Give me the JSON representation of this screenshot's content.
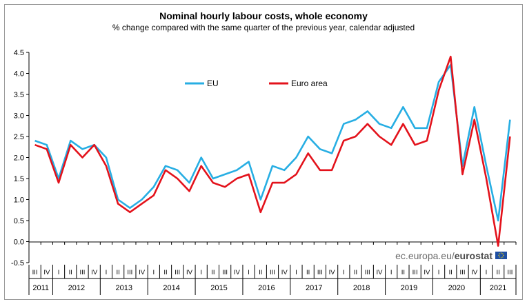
{
  "chart_data": {
    "type": "line",
    "title": "Nominal hourly labour costs, whole economy",
    "subtitle": "% change compared with the same quarter of the previous  year, calendar adjusted",
    "ylim": [
      -0.5,
      4.5
    ],
    "y_ticks": [
      "4.5",
      "4.0",
      "3.5",
      "3.0",
      "2.5",
      "2.0",
      "1.5",
      "1.0",
      "0.5",
      "0.0",
      "-0.5"
    ],
    "quarters": [
      "III",
      "IV",
      "I",
      "II",
      "III",
      "IV",
      "I",
      "II",
      "III",
      "IV",
      "I",
      "II",
      "III",
      "IV",
      "I",
      "II",
      "III",
      "IV",
      "I",
      "II",
      "III",
      "IV",
      "I",
      "II",
      "III",
      "IV",
      "I",
      "II",
      "III",
      "IV",
      "I",
      "II",
      "III",
      "IV",
      "I",
      "II",
      "III",
      "IV",
      "I",
      "II",
      "III"
    ],
    "years": [
      {
        "label": "2011",
        "start": 0,
        "end": 2
      },
      {
        "label": "2012",
        "start": 2,
        "end": 6
      },
      {
        "label": "2013",
        "start": 6,
        "end": 10
      },
      {
        "label": "2014",
        "start": 10,
        "end": 14
      },
      {
        "label": "2015",
        "start": 14,
        "end": 18
      },
      {
        "label": "2016",
        "start": 18,
        "end": 22
      },
      {
        "label": "2017",
        "start": 22,
        "end": 26
      },
      {
        "label": "2018",
        "start": 26,
        "end": 30
      },
      {
        "label": "2019",
        "start": 30,
        "end": 34
      },
      {
        "label": "2020",
        "start": 34,
        "end": 38
      },
      {
        "label": "2021",
        "start": 38,
        "end": 41
      }
    ],
    "series": [
      {
        "name": "EU",
        "color": "#27aee3",
        "values": [
          2.4,
          2.3,
          1.5,
          2.4,
          2.2,
          2.3,
          2.0,
          1.0,
          0.8,
          1.0,
          1.3,
          1.8,
          1.7,
          1.4,
          2.0,
          1.5,
          1.6,
          1.7,
          1.9,
          1.0,
          1.8,
          1.7,
          2.0,
          2.5,
          2.2,
          2.1,
          2.8,
          2.9,
          3.1,
          2.8,
          2.7,
          3.2,
          2.7,
          2.7,
          3.8,
          4.2,
          1.8,
          3.2,
          1.8,
          0.5,
          2.9
        ]
      },
      {
        "name": "Euro area",
        "color": "#e3121b",
        "values": [
          2.3,
          2.2,
          1.4,
          2.3,
          2.0,
          2.3,
          1.8,
          0.9,
          0.7,
          0.9,
          1.1,
          1.7,
          1.5,
          1.2,
          1.8,
          1.4,
          1.3,
          1.5,
          1.6,
          0.7,
          1.4,
          1.4,
          1.6,
          2.1,
          1.7,
          1.7,
          2.4,
          2.5,
          2.8,
          2.5,
          2.3,
          2.8,
          2.3,
          2.4,
          3.6,
          4.4,
          1.6,
          2.9,
          1.5,
          -0.1,
          2.5
        ]
      }
    ],
    "legend_position": "top-center"
  },
  "watermark": {
    "prefix": "ec.europa.eu/",
    "brand": "eurostat"
  },
  "colors": {
    "eu": "#27aee3",
    "euro_area": "#e3121b",
    "axis": "#000000"
  }
}
